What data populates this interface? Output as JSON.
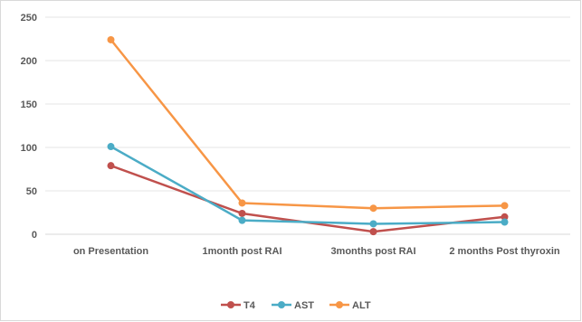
{
  "chart_data": {
    "type": "line",
    "categories": [
      "on Presentation",
      "1month post RAI",
      "3months post RAI",
      "2 months Post thyroxin"
    ],
    "series": [
      {
        "name": "T4",
        "values": [
          79,
          24,
          3,
          20
        ],
        "color": "#c0504d"
      },
      {
        "name": "AST",
        "values": [
          101,
          16,
          12,
          14
        ],
        "color": "#4bacc6"
      },
      {
        "name": "ALT",
        "values": [
          224,
          36,
          30,
          33
        ],
        "color": "#f79646"
      }
    ],
    "yticks": [
      0,
      50,
      100,
      150,
      200,
      250
    ],
    "ylim": [
      0,
      250
    ],
    "grid": true,
    "gridlines": "horizontal",
    "legend_position": "bottom",
    "title": "",
    "xlabel": "",
    "ylabel": ""
  }
}
